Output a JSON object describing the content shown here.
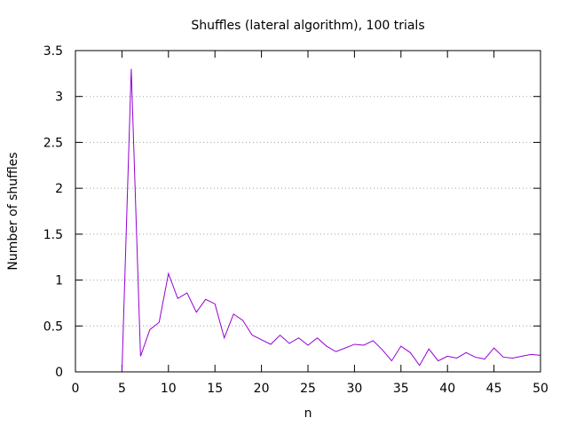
{
  "chart_data": {
    "type": "line",
    "title": "Shuffles (lateral algorithm), 100 trials",
    "xlabel": "n",
    "ylabel": "Number of shuffles",
    "xlim": [
      0,
      50
    ],
    "ylim": [
      0,
      3.5
    ],
    "xticks": [
      "0",
      "5",
      "10",
      "15",
      "20",
      "25",
      "30",
      "35",
      "40",
      "45",
      "50"
    ],
    "yticks": [
      "0",
      "0.5",
      "1",
      "1.5",
      "2",
      "2.5",
      "3",
      "3.5"
    ],
    "grid": "horizontal dotted",
    "legend": "none",
    "line_color": "#9400d3",
    "x": [
      5,
      6,
      7,
      8,
      9,
      10,
      11,
      12,
      13,
      14,
      15,
      16,
      17,
      18,
      19,
      20,
      21,
      22,
      23,
      24,
      25,
      26,
      27,
      28,
      29,
      30,
      31,
      32,
      33,
      34,
      35,
      36,
      37,
      38,
      39,
      40,
      41,
      42,
      43,
      44,
      45,
      46,
      47,
      48,
      49,
      50
    ],
    "y": [
      0,
      3.3,
      0.17,
      0.46,
      0.54,
      1.07,
      0.8,
      0.86,
      0.65,
      0.79,
      0.74,
      0.37,
      0.63,
      0.56,
      0.4,
      0.35,
      0.3,
      0.4,
      0.31,
      0.37,
      0.29,
      0.37,
      0.28,
      0.22,
      0.26,
      0.3,
      0.29,
      0.34,
      0.24,
      0.12,
      0.28,
      0.21,
      0.07,
      0.25,
      0.12,
      0.17,
      0.15,
      0.21,
      0.16,
      0.14,
      0.26,
      0.16,
      0.15,
      0.17,
      0.19,
      0.18
    ]
  }
}
